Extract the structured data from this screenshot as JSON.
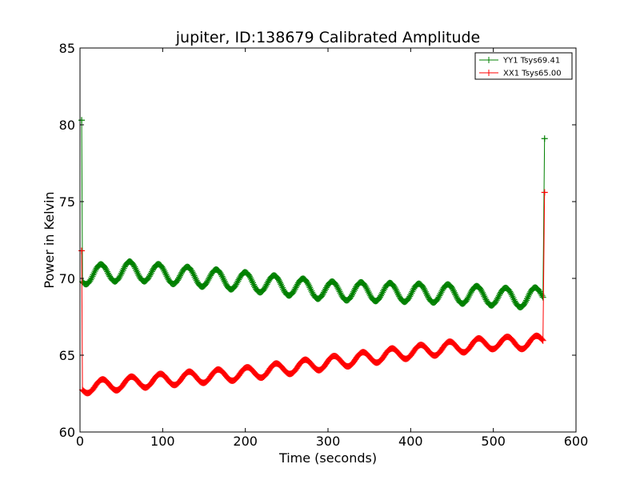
{
  "chart_data": {
    "type": "line",
    "title": "jupiter, ID:138679 Calibrated Amplitude",
    "xlabel": "Time (seconds)",
    "ylabel": "Power in Kelvin",
    "xlim": [
      0,
      600
    ],
    "ylim": [
      60,
      85
    ],
    "xticks": [
      0,
      100,
      200,
      300,
      400,
      500,
      600
    ],
    "yticks": [
      60,
      65,
      70,
      75,
      80,
      85
    ],
    "grid": false,
    "legend_position": "top-right",
    "marker": "+",
    "series": [
      {
        "name": "YY1 Tsys69.41",
        "color": "#008000",
        "sine": {
          "period": 35,
          "amplitude": 0.6,
          "phase_peak": 25
        },
        "trend": [
          [
            2,
            80.3
          ],
          [
            3,
            70.2
          ],
          [
            60,
            70.5
          ],
          [
            200,
            69.8
          ],
          [
            300,
            69.2
          ],
          [
            450,
            69.0
          ],
          [
            540,
            68.7
          ],
          [
            560,
            68.9
          ],
          [
            562,
            79.1
          ]
        ]
      },
      {
        "name": "XX1 Tsys65.00",
        "color": "#ff0000",
        "sine": {
          "period": 35,
          "amplitude": 0.4,
          "phase_peak": 27
        },
        "trend": [
          [
            2,
            71.8
          ],
          [
            3,
            62.9
          ],
          [
            100,
            63.4
          ],
          [
            200,
            63.8
          ],
          [
            300,
            64.5
          ],
          [
            400,
            65.2
          ],
          [
            500,
            65.8
          ],
          [
            540,
            65.8
          ],
          [
            560,
            65.9
          ],
          [
            562,
            75.6
          ]
        ]
      }
    ]
  }
}
